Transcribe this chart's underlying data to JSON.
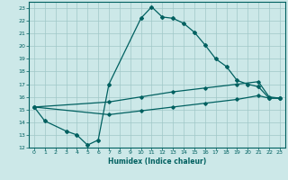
{
  "title": "",
  "xlabel": "Humidex (Indice chaleur)",
  "bg_color": "#cce8e8",
  "grid_color": "#a0c8c8",
  "line_color": "#006060",
  "xlim": [
    -0.5,
    23.5
  ],
  "ylim": [
    12,
    23.5
  ],
  "xticks": [
    0,
    1,
    2,
    3,
    4,
    5,
    6,
    7,
    8,
    9,
    10,
    11,
    12,
    13,
    14,
    15,
    16,
    17,
    18,
    19,
    20,
    21,
    22,
    23
  ],
  "yticks": [
    12,
    13,
    14,
    15,
    16,
    17,
    18,
    19,
    20,
    21,
    22,
    23
  ],
  "line1_x": [
    0,
    1,
    3,
    4,
    5,
    6,
    7,
    10,
    11,
    12,
    13,
    14,
    15,
    16,
    17,
    18,
    19,
    20,
    21,
    22,
    23
  ],
  "line1_y": [
    15.2,
    14.1,
    13.3,
    13.0,
    12.2,
    12.6,
    17.0,
    22.2,
    23.1,
    22.3,
    22.2,
    21.8,
    21.1,
    20.1,
    19.0,
    18.4,
    17.3,
    17.0,
    16.8,
    15.9,
    15.9
  ],
  "line2_x": [
    0,
    7,
    10,
    13,
    16,
    19,
    21,
    22,
    23
  ],
  "line2_y": [
    15.2,
    15.6,
    16.0,
    16.4,
    16.7,
    17.0,
    17.2,
    16.0,
    15.9
  ],
  "line3_x": [
    0,
    7,
    10,
    13,
    16,
    19,
    21,
    22,
    23
  ],
  "line3_y": [
    15.2,
    14.6,
    14.9,
    15.2,
    15.5,
    15.8,
    16.1,
    15.9,
    15.9
  ]
}
